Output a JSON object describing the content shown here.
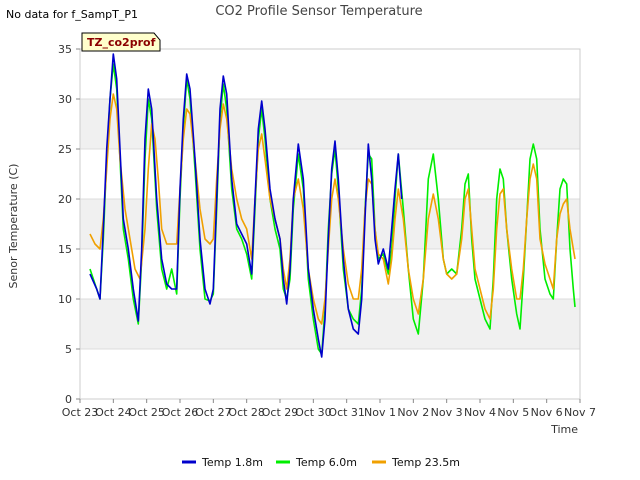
{
  "header": {
    "no_data_note": "No data for f_SampT_P1",
    "tag_label": "TZ_co2prof"
  },
  "colors": {
    "band": "#f0f0f0",
    "tag_fill": "#ffffcc",
    "tag_border": "#000000"
  },
  "chart_data": {
    "type": "line",
    "title": "CO2 Profile Sensor Temperature",
    "xlabel": "Time",
    "ylabel": "Senor Temperature (C)",
    "x_unit": "days",
    "xlim": [
      0,
      15
    ],
    "ylim": [
      0,
      35
    ],
    "x_tick_labels": [
      "Oct 23",
      "Oct 24",
      "Oct 25",
      "Oct 26",
      "Oct 27",
      "Oct 28",
      "Oct 29",
      "Oct 30",
      "Oct 31",
      "Nov 1",
      "Nov 2",
      "Nov 3",
      "Nov 4",
      "Nov 5",
      "Nov 6",
      "Nov 7"
    ],
    "y_ticks": [
      0,
      5,
      10,
      15,
      20,
      25,
      30,
      35
    ],
    "grid": true,
    "legend_position": "bottom",
    "series": [
      {
        "name": "Temp 1.8m",
        "color": "#0000cc",
        "points": [
          [
            0.3,
            12.5
          ],
          [
            0.5,
            11
          ],
          [
            0.6,
            10
          ],
          [
            0.7,
            17
          ],
          [
            0.8,
            25
          ],
          [
            0.9,
            30
          ],
          [
            1.0,
            34.5
          ],
          [
            1.1,
            32
          ],
          [
            1.2,
            25
          ],
          [
            1.3,
            18
          ],
          [
            1.45,
            15
          ],
          [
            1.6,
            11
          ],
          [
            1.75,
            7.8
          ],
          [
            1.85,
            15
          ],
          [
            1.95,
            26
          ],
          [
            2.05,
            31
          ],
          [
            2.15,
            29
          ],
          [
            2.3,
            20
          ],
          [
            2.45,
            14
          ],
          [
            2.6,
            11.5
          ],
          [
            2.75,
            11
          ],
          [
            2.9,
            11
          ],
          [
            3.0,
            21
          ],
          [
            3.1,
            28
          ],
          [
            3.2,
            32.5
          ],
          [
            3.3,
            31
          ],
          [
            3.45,
            24
          ],
          [
            3.6,
            16
          ],
          [
            3.75,
            11
          ],
          [
            3.9,
            9.5
          ],
          [
            4.0,
            11
          ],
          [
            4.1,
            20
          ],
          [
            4.2,
            29
          ],
          [
            4.3,
            32.3
          ],
          [
            4.4,
            30.5
          ],
          [
            4.55,
            22
          ],
          [
            4.7,
            17.5
          ],
          [
            4.85,
            16.5
          ],
          [
            5.0,
            15.5
          ],
          [
            5.15,
            12.5
          ],
          [
            5.25,
            20
          ],
          [
            5.35,
            27
          ],
          [
            5.45,
            29.8
          ],
          [
            5.55,
            27
          ],
          [
            5.7,
            21
          ],
          [
            5.85,
            18
          ],
          [
            6.0,
            16
          ],
          [
            6.1,
            12
          ],
          [
            6.2,
            9.5
          ],
          [
            6.3,
            13
          ],
          [
            6.4,
            20
          ],
          [
            6.55,
            25.5
          ],
          [
            6.7,
            22
          ],
          [
            6.85,
            13
          ],
          [
            7.0,
            9
          ],
          [
            7.15,
            6
          ],
          [
            7.25,
            4.2
          ],
          [
            7.35,
            8
          ],
          [
            7.45,
            16
          ],
          [
            7.55,
            23
          ],
          [
            7.65,
            25.8
          ],
          [
            7.75,
            22
          ],
          [
            7.9,
            14
          ],
          [
            8.05,
            9
          ],
          [
            8.2,
            7
          ],
          [
            8.35,
            6.5
          ],
          [
            8.45,
            10
          ],
          [
            8.55,
            18
          ],
          [
            8.65,
            25.5
          ],
          [
            8.75,
            22
          ],
          [
            8.85,
            16
          ],
          [
            8.95,
            13.5
          ],
          [
            9.1,
            15
          ],
          [
            9.25,
            13
          ],
          [
            9.35,
            17
          ],
          [
            9.45,
            21
          ],
          [
            9.55,
            24.5
          ],
          [
            9.65,
            20
          ]
        ]
      },
      {
        "name": "Temp 6.0m",
        "color": "#00ee00",
        "points": [
          [
            0.3,
            13
          ],
          [
            0.45,
            11.5
          ],
          [
            0.6,
            10
          ],
          [
            0.7,
            16
          ],
          [
            0.8,
            24
          ],
          [
            0.9,
            30
          ],
          [
            1.0,
            33.5
          ],
          [
            1.1,
            31
          ],
          [
            1.2,
            24
          ],
          [
            1.3,
            17
          ],
          [
            1.45,
            14
          ],
          [
            1.6,
            10
          ],
          [
            1.75,
            7.5
          ],
          [
            1.85,
            14
          ],
          [
            1.95,
            24
          ],
          [
            2.05,
            30
          ],
          [
            2.15,
            28
          ],
          [
            2.3,
            19
          ],
          [
            2.45,
            13
          ],
          [
            2.6,
            11
          ],
          [
            2.75,
            13
          ],
          [
            2.9,
            10.5
          ],
          [
            3.0,
            20
          ],
          [
            3.1,
            27
          ],
          [
            3.2,
            32
          ],
          [
            3.3,
            30
          ],
          [
            3.45,
            23
          ],
          [
            3.6,
            15
          ],
          [
            3.75,
            10
          ],
          [
            3.9,
            9.8
          ],
          [
            4.0,
            10.5
          ],
          [
            4.1,
            19
          ],
          [
            4.2,
            28
          ],
          [
            4.3,
            31.5
          ],
          [
            4.4,
            29
          ],
          [
            4.55,
            21
          ],
          [
            4.7,
            17
          ],
          [
            4.85,
            16
          ],
          [
            5.0,
            14.5
          ],
          [
            5.15,
            12
          ],
          [
            5.25,
            19
          ],
          [
            5.35,
            26
          ],
          [
            5.45,
            29
          ],
          [
            5.55,
            26
          ],
          [
            5.7,
            20
          ],
          [
            5.85,
            17
          ],
          [
            6.0,
            15
          ],
          [
            6.1,
            11
          ],
          [
            6.2,
            10
          ],
          [
            6.3,
            12
          ],
          [
            6.4,
            19
          ],
          [
            6.55,
            24.5
          ],
          [
            6.7,
            21
          ],
          [
            6.85,
            12
          ],
          [
            7.0,
            8
          ],
          [
            7.15,
            5
          ],
          [
            7.25,
            4.5
          ],
          [
            7.35,
            9
          ],
          [
            7.45,
            17
          ],
          [
            7.55,
            22.5
          ],
          [
            7.65,
            25
          ],
          [
            7.75,
            21
          ],
          [
            7.9,
            13
          ],
          [
            8.05,
            9
          ],
          [
            8.2,
            8
          ],
          [
            8.35,
            7.5
          ],
          [
            8.45,
            11
          ],
          [
            8.55,
            19
          ],
          [
            8.65,
            24.5
          ],
          [
            8.75,
            24
          ],
          [
            8.85,
            17
          ],
          [
            8.95,
            14
          ],
          [
            9.1,
            14.5
          ],
          [
            9.25,
            12.5
          ],
          [
            9.35,
            15
          ],
          [
            9.45,
            20
          ],
          [
            9.55,
            24.5
          ],
          [
            9.7,
            19
          ],
          [
            9.85,
            13
          ],
          [
            10.0,
            8
          ],
          [
            10.15,
            6.5
          ],
          [
            10.3,
            12
          ],
          [
            10.45,
            22
          ],
          [
            10.6,
            24.5
          ],
          [
            10.75,
            20
          ],
          [
            10.9,
            14
          ],
          [
            11.0,
            12.5
          ],
          [
            11.15,
            13
          ],
          [
            11.3,
            12.5
          ],
          [
            11.45,
            17
          ],
          [
            11.55,
            21.5
          ],
          [
            11.65,
            22.5
          ],
          [
            11.75,
            16
          ],
          [
            11.85,
            12
          ],
          [
            12.0,
            10
          ],
          [
            12.15,
            8
          ],
          [
            12.3,
            7
          ],
          [
            12.4,
            12
          ],
          [
            12.5,
            20
          ],
          [
            12.6,
            23
          ],
          [
            12.7,
            22
          ],
          [
            12.8,
            17
          ],
          [
            12.95,
            12
          ],
          [
            13.1,
            8.5
          ],
          [
            13.2,
            7
          ],
          [
            13.3,
            12
          ],
          [
            13.4,
            18
          ],
          [
            13.5,
            24
          ],
          [
            13.6,
            25.5
          ],
          [
            13.7,
            24
          ],
          [
            13.8,
            17
          ],
          [
            13.95,
            12
          ],
          [
            14.1,
            10.5
          ],
          [
            14.2,
            10
          ],
          [
            14.3,
            16
          ],
          [
            14.4,
            21
          ],
          [
            14.5,
            22
          ],
          [
            14.6,
            21.5
          ],
          [
            14.7,
            15
          ],
          [
            14.8,
            11
          ],
          [
            14.85,
            9.2
          ]
        ]
      },
      {
        "name": "Temp 23.5m",
        "color": "#f0a000",
        "points": [
          [
            0.3,
            16.5
          ],
          [
            0.45,
            15.5
          ],
          [
            0.6,
            15
          ],
          [
            0.7,
            18
          ],
          [
            0.8,
            23
          ],
          [
            0.9,
            28
          ],
          [
            1.0,
            30.5
          ],
          [
            1.1,
            29
          ],
          [
            1.2,
            24
          ],
          [
            1.35,
            19
          ],
          [
            1.5,
            16
          ],
          [
            1.65,
            13
          ],
          [
            1.8,
            12
          ],
          [
            1.95,
            17
          ],
          [
            2.05,
            23
          ],
          [
            2.15,
            27.5
          ],
          [
            2.25,
            26
          ],
          [
            2.35,
            22
          ],
          [
            2.45,
            17
          ],
          [
            2.6,
            15.5
          ],
          [
            2.75,
            15.5
          ],
          [
            2.9,
            15.5
          ],
          [
            3.0,
            21
          ],
          [
            3.1,
            26
          ],
          [
            3.2,
            29
          ],
          [
            3.3,
            28.5
          ],
          [
            3.45,
            24
          ],
          [
            3.6,
            19
          ],
          [
            3.75,
            16
          ],
          [
            3.9,
            15.5
          ],
          [
            4.0,
            16
          ],
          [
            4.1,
            22
          ],
          [
            4.2,
            27
          ],
          [
            4.3,
            29.5
          ],
          [
            4.4,
            28
          ],
          [
            4.55,
            23
          ],
          [
            4.7,
            20
          ],
          [
            4.85,
            18
          ],
          [
            5.0,
            17
          ],
          [
            5.15,
            14
          ],
          [
            5.25,
            20
          ],
          [
            5.35,
            25
          ],
          [
            5.45,
            26.5
          ],
          [
            5.55,
            24
          ],
          [
            5.7,
            20
          ],
          [
            5.85,
            18
          ],
          [
            6.0,
            16
          ],
          [
            6.1,
            13
          ],
          [
            6.2,
            11
          ],
          [
            6.3,
            14
          ],
          [
            6.4,
            20
          ],
          [
            6.55,
            22
          ],
          [
            6.7,
            19
          ],
          [
            6.85,
            13
          ],
          [
            7.0,
            10
          ],
          [
            7.15,
            8
          ],
          [
            7.25,
            7.5
          ],
          [
            7.35,
            10
          ],
          [
            7.45,
            15
          ],
          [
            7.55,
            20
          ],
          [
            7.65,
            22
          ],
          [
            7.75,
            20
          ],
          [
            7.9,
            15
          ],
          [
            8.05,
            11.5
          ],
          [
            8.2,
            10
          ],
          [
            8.35,
            10
          ],
          [
            8.45,
            13
          ],
          [
            8.55,
            19
          ],
          [
            8.65,
            22
          ],
          [
            8.75,
            21.5
          ],
          [
            8.85,
            17
          ],
          [
            8.95,
            14.5
          ],
          [
            9.1,
            14
          ],
          [
            9.25,
            11.5
          ],
          [
            9.35,
            14
          ],
          [
            9.45,
            18
          ],
          [
            9.55,
            21
          ],
          [
            9.7,
            18
          ],
          [
            9.85,
            13
          ],
          [
            10.0,
            10
          ],
          [
            10.15,
            8.5
          ],
          [
            10.3,
            12
          ],
          [
            10.45,
            18
          ],
          [
            10.6,
            20.5
          ],
          [
            10.75,
            18
          ],
          [
            10.9,
            14
          ],
          [
            11.0,
            12.5
          ],
          [
            11.15,
            12
          ],
          [
            11.3,
            12.5
          ],
          [
            11.45,
            16
          ],
          [
            11.55,
            20
          ],
          [
            11.65,
            21
          ],
          [
            11.75,
            17
          ],
          [
            11.85,
            13
          ],
          [
            12.0,
            11
          ],
          [
            12.15,
            9
          ],
          [
            12.3,
            8
          ],
          [
            12.4,
            11
          ],
          [
            12.5,
            17
          ],
          [
            12.6,
            20.5
          ],
          [
            12.7,
            21
          ],
          [
            12.8,
            17
          ],
          [
            12.95,
            13
          ],
          [
            13.1,
            10
          ],
          [
            13.2,
            10
          ],
          [
            13.3,
            13
          ],
          [
            13.4,
            18
          ],
          [
            13.5,
            22
          ],
          [
            13.6,
            23.5
          ],
          [
            13.7,
            22
          ],
          [
            13.8,
            16
          ],
          [
            13.95,
            13.5
          ],
          [
            14.1,
            12
          ],
          [
            14.2,
            11
          ],
          [
            14.3,
            16
          ],
          [
            14.4,
            18.5
          ],
          [
            14.5,
            19.5
          ],
          [
            14.6,
            20
          ],
          [
            14.7,
            17
          ],
          [
            14.8,
            15
          ],
          [
            14.85,
            14
          ]
        ]
      }
    ]
  }
}
